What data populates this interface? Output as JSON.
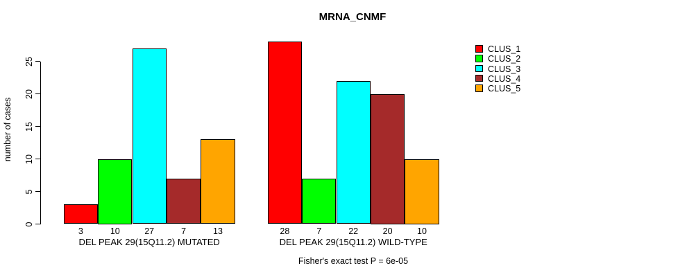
{
  "chart_data": {
    "type": "bar",
    "title": "MRNA_CNMF",
    "ylabel": "number of cases",
    "footer_note": "Fisher's exact test P = 6e-05",
    "legend": {
      "position": "right",
      "entries": [
        {
          "label": "CLUS_1",
          "color": "#FF0000"
        },
        {
          "label": "CLUS_2",
          "color": "#00FF00"
        },
        {
          "label": "CLUS_3",
          "color": "#00FFFF"
        },
        {
          "label": "CLUS_4",
          "color": "#A52A2A"
        },
        {
          "label": "CLUS_5",
          "color": "#FFA500"
        }
      ]
    },
    "groups": [
      {
        "label": "DEL PEAK 29(15Q11.2) MUTATED",
        "values": [
          3,
          10,
          27,
          7,
          13
        ]
      },
      {
        "label": "DEL PEAK 29(15Q11.2) WILD-TYPE",
        "values": [
          28,
          7,
          22,
          20,
          10
        ]
      }
    ],
    "series_names": [
      "CLUS_1",
      "CLUS_2",
      "CLUS_3",
      "CLUS_4",
      "CLUS_5"
    ],
    "y_ticks": [
      0,
      5,
      10,
      15,
      20,
      25
    ],
    "ylim": [
      0,
      28
    ],
    "grid": false,
    "bar_border_color": "#000000",
    "background_color": "#FFFFFF",
    "text_color": "#000000"
  }
}
